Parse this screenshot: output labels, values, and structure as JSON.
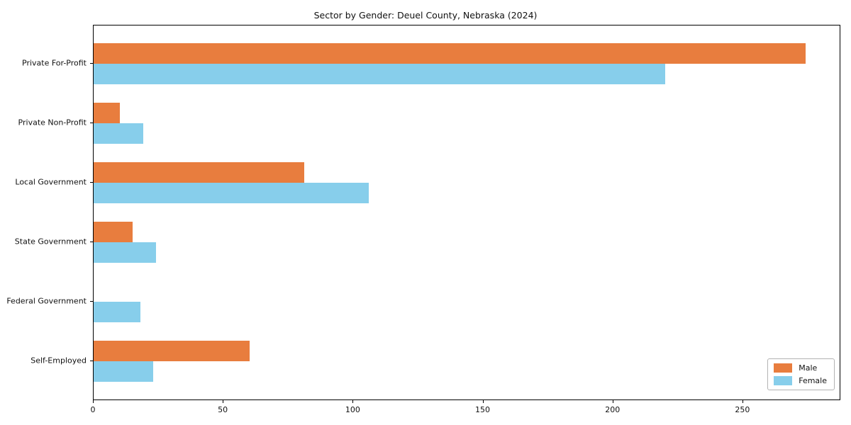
{
  "figure": {
    "background": "#ffffff",
    "axis_color": "#000000",
    "text_color": "#111111"
  },
  "chart_data": {
    "type": "bar",
    "orientation": "horizontal",
    "title": "Sector by Gender: Deuel County, Nebraska (2024)",
    "categories": [
      "Private For-Profit",
      "Private Non-Profit",
      "Local Government",
      "State Government",
      "Federal Government",
      "Self-Employed"
    ],
    "series": [
      {
        "name": "Male",
        "color": "#e87d3e",
        "values": [
          274,
          10,
          81,
          15,
          0,
          60
        ]
      },
      {
        "name": "Female",
        "color": "#87ceeb",
        "values": [
          220,
          19,
          106,
          24,
          18,
          23
        ]
      }
    ],
    "xlabel": "",
    "ylabel": "",
    "xlim": [
      0,
      287.7
    ],
    "xticks": [
      0,
      50,
      100,
      150,
      200,
      250
    ],
    "grid": false,
    "legend": {
      "position": "lower right",
      "entries": [
        "Male",
        "Female"
      ]
    }
  }
}
